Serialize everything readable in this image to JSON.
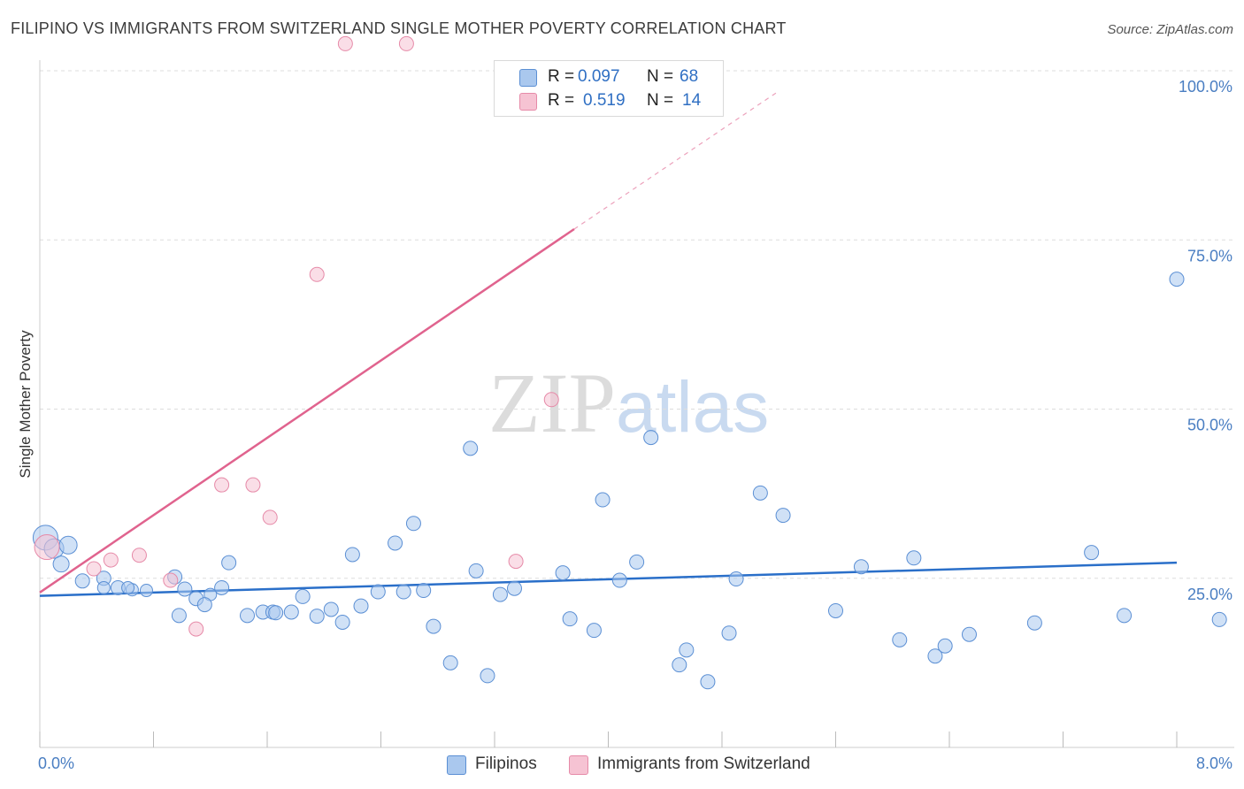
{
  "title": "FILIPINO VS IMMIGRANTS FROM SWITZERLAND SINGLE MOTHER POVERTY CORRELATION CHART",
  "source": "Source: ZipAtlas.com",
  "watermark": {
    "zip": "ZIP",
    "atlas": "atlas"
  },
  "legend_top": [
    {
      "r_label": "R =",
      "r_value": "0.097",
      "n_label": "N =",
      "n_value": "68"
    },
    {
      "r_label": "R =",
      "r_value": "0.519",
      "n_label": "N =",
      "n_value": "14"
    }
  ],
  "legend_bottom": [
    "Filipinos",
    "Immigrants from Switzerland"
  ],
  "colors": {
    "blue_fill": "#aac8ee",
    "blue_stroke": "#5b8fd4",
    "blue_line": "#2a6fc9",
    "pink_fill": "#f6c3d3",
    "pink_stroke": "#e68aa8",
    "pink_line": "#e0638e",
    "tick_text": "#4a7ec2",
    "grid": "#dddddd"
  },
  "chart_data": {
    "type": "scatter",
    "title": "FILIPINO VS IMMIGRANTS FROM SWITZERLAND SINGLE MOTHER POVERTY CORRELATION CHART",
    "xlabel": "",
    "ylabel": "Single Mother Poverty",
    "xlim": [
      0,
      8
    ],
    "ylim": [
      0,
      100
    ],
    "x_tick_labels": [
      "0.0%",
      "8.0%"
    ],
    "y_tick_labels": [
      "25.0%",
      "50.0%",
      "75.0%",
      "100.0%"
    ],
    "y_ticks": [
      25,
      50,
      75,
      100
    ],
    "grid": true,
    "legend_placement": "bottom",
    "series": [
      {
        "name": "Filipinos",
        "R": 0.097,
        "N": 68,
        "trend": {
          "x": [
            0,
            8
          ],
          "y": [
            22.4,
            27.3
          ]
        },
        "points": [
          [
            0.04,
            31.0,
            14
          ],
          [
            0.1,
            29.4,
            11
          ],
          [
            0.2,
            29.9,
            10
          ],
          [
            0.15,
            27.1,
            9
          ],
          [
            0.3,
            24.6,
            8
          ],
          [
            0.45,
            25.0,
            8
          ],
          [
            0.55,
            23.6,
            8
          ],
          [
            0.45,
            23.6,
            7
          ],
          [
            0.65,
            23.3,
            7
          ],
          [
            0.75,
            23.2,
            7
          ],
          [
            0.62,
            23.6,
            7
          ],
          [
            0.95,
            25.2,
            8
          ],
          [
            1.02,
            23.4,
            8
          ],
          [
            1.1,
            22.0,
            8
          ],
          [
            1.2,
            22.6,
            7
          ],
          [
            1.28,
            23.6,
            8
          ],
          [
            0.98,
            19.5,
            8
          ],
          [
            1.16,
            21.1,
            8
          ],
          [
            1.33,
            27.3,
            8
          ],
          [
            1.46,
            19.5,
            8
          ],
          [
            1.57,
            20.0,
            8
          ],
          [
            1.64,
            20.0,
            8
          ],
          [
            1.77,
            20.0,
            8
          ],
          [
            1.85,
            22.3,
            8
          ],
          [
            1.66,
            19.9,
            8
          ],
          [
            1.95,
            19.4,
            8
          ],
          [
            2.05,
            20.4,
            8
          ],
          [
            2.13,
            18.5,
            8
          ],
          [
            2.26,
            20.9,
            8
          ],
          [
            2.38,
            23.0,
            8
          ],
          [
            2.2,
            28.5,
            8
          ],
          [
            2.5,
            30.2,
            8
          ],
          [
            2.63,
            33.1,
            8
          ],
          [
            2.56,
            23.0,
            8
          ],
          [
            2.7,
            23.2,
            8
          ],
          [
            2.77,
            17.9,
            8
          ],
          [
            2.89,
            12.5,
            8
          ],
          [
            3.03,
            44.2,
            8
          ],
          [
            3.15,
            10.6,
            8
          ],
          [
            3.24,
            22.6,
            8
          ],
          [
            3.34,
            23.5,
            8
          ],
          [
            3.07,
            26.1,
            8
          ],
          [
            3.68,
            25.8,
            8
          ],
          [
            3.73,
            19.0,
            8
          ],
          [
            3.9,
            17.3,
            8
          ],
          [
            3.96,
            36.6,
            8
          ],
          [
            4.08,
            24.7,
            8
          ],
          [
            4.2,
            27.4,
            8
          ],
          [
            4.3,
            45.8,
            8
          ],
          [
            4.5,
            12.2,
            8
          ],
          [
            4.55,
            14.4,
            8
          ],
          [
            4.7,
            9.7,
            8
          ],
          [
            4.85,
            16.9,
            8
          ],
          [
            4.9,
            24.9,
            8
          ],
          [
            5.07,
            37.6,
            8
          ],
          [
            5.23,
            34.3,
            8
          ],
          [
            5.6,
            20.2,
            8
          ],
          [
            5.78,
            26.7,
            8
          ],
          [
            6.05,
            15.9,
            8
          ],
          [
            6.15,
            28.0,
            8
          ],
          [
            6.3,
            13.5,
            8
          ],
          [
            6.37,
            15.0,
            8
          ],
          [
            6.54,
            16.7,
            8
          ],
          [
            7.0,
            18.4,
            8
          ],
          [
            7.4,
            28.8,
            8
          ],
          [
            7.63,
            19.5,
            8
          ],
          [
            8.0,
            69.2,
            8
          ],
          [
            8.3,
            18.9,
            8
          ]
        ]
      },
      {
        "name": "Immigrants from Switzerland",
        "R": 0.519,
        "N": 14,
        "trend": {
          "x": [
            0,
            3.76
          ],
          "y": [
            22.9,
            76.6
          ]
        },
        "trend_extension": {
          "x": [
            3.76,
            5.2
          ],
          "y": [
            76.6,
            97.0
          ]
        },
        "points": [
          [
            0.05,
            29.6,
            14
          ],
          [
            0.38,
            26.4,
            8
          ],
          [
            0.5,
            27.7,
            8
          ],
          [
            0.7,
            28.4,
            8
          ],
          [
            0.92,
            24.7,
            8
          ],
          [
            1.1,
            17.5,
            8
          ],
          [
            1.28,
            38.8,
            8
          ],
          [
            1.5,
            38.8,
            8
          ],
          [
            1.62,
            34.0,
            8
          ],
          [
            1.95,
            69.9,
            8
          ],
          [
            2.15,
            104.0,
            8
          ],
          [
            2.58,
            104.0,
            8
          ],
          [
            3.35,
            27.5,
            8
          ],
          [
            3.6,
            51.4,
            8
          ]
        ]
      }
    ]
  }
}
